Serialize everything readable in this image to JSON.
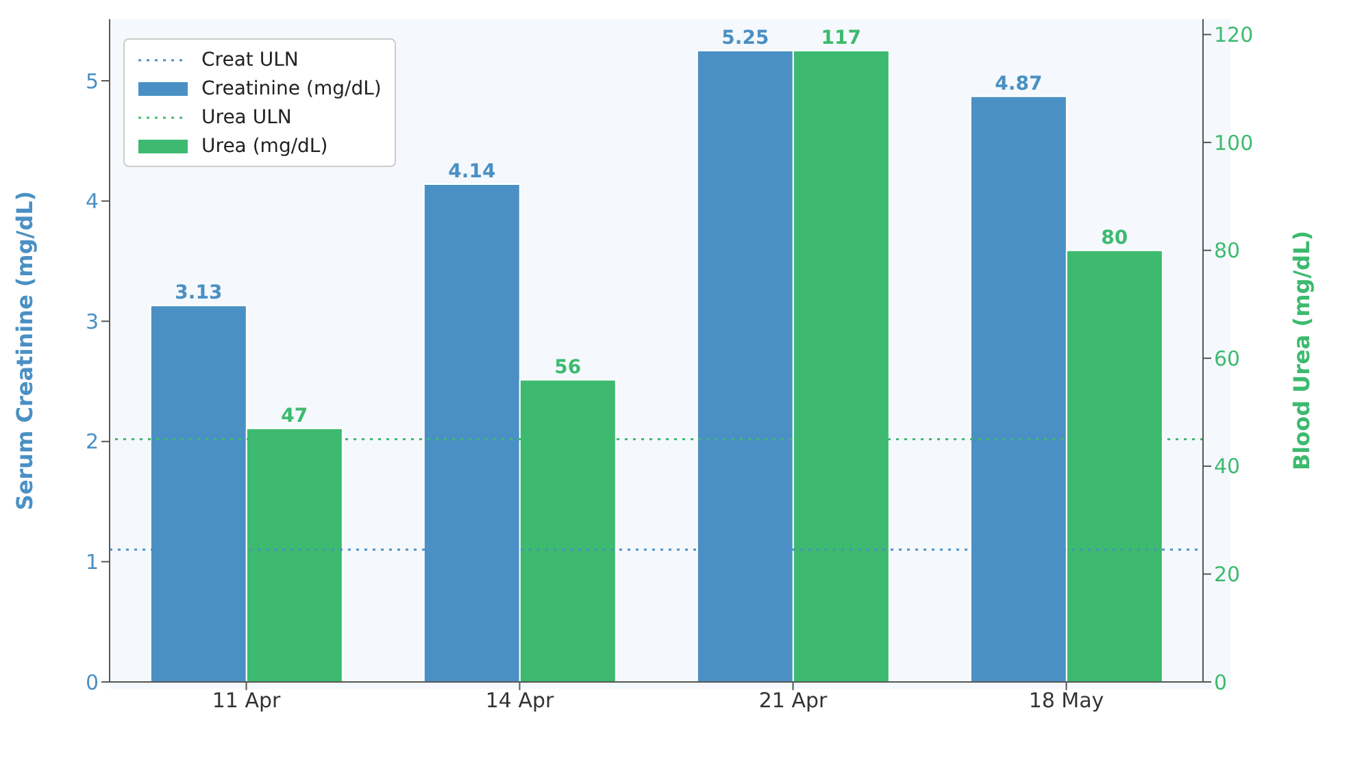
{
  "chart_data": {
    "type": "bar",
    "categories": [
      "11 Apr",
      "14 Apr",
      "21 Apr",
      "18 May"
    ],
    "series": [
      {
        "name": "Creatinine (mg/dL)",
        "color": "#4a90c4",
        "values": [
          3.13,
          4.14,
          5.25,
          4.87
        ]
      },
      {
        "name": "Urea (mg/dL)",
        "color": "#3dba6f",
        "values": [
          47,
          56,
          117,
          80
        ],
        "axis": "y2"
      }
    ],
    "ylabel": "Serum Creatinine (mg/dL)",
    "y2label": "Blood Urea (mg/dL)",
    "ylim": [
      0,
      5.5125
    ],
    "yticks": [
      0,
      1,
      2,
      3,
      4,
      5
    ],
    "y2lim": [
      0,
      122.85
    ],
    "y2ticks": [
      0,
      20,
      40,
      60,
      80,
      100,
      120
    ],
    "ref_lines": [
      {
        "axis": "y",
        "value": 1.1,
        "label": "Creat ULN",
        "color": "#4a90c4",
        "line_style": "dotted"
      },
      {
        "axis": "y2",
        "value": 45,
        "label": "Urea ULN",
        "color": "#3dba6f",
        "line_style": "dotted"
      }
    ],
    "data_labels": true,
    "legend": "top left"
  }
}
